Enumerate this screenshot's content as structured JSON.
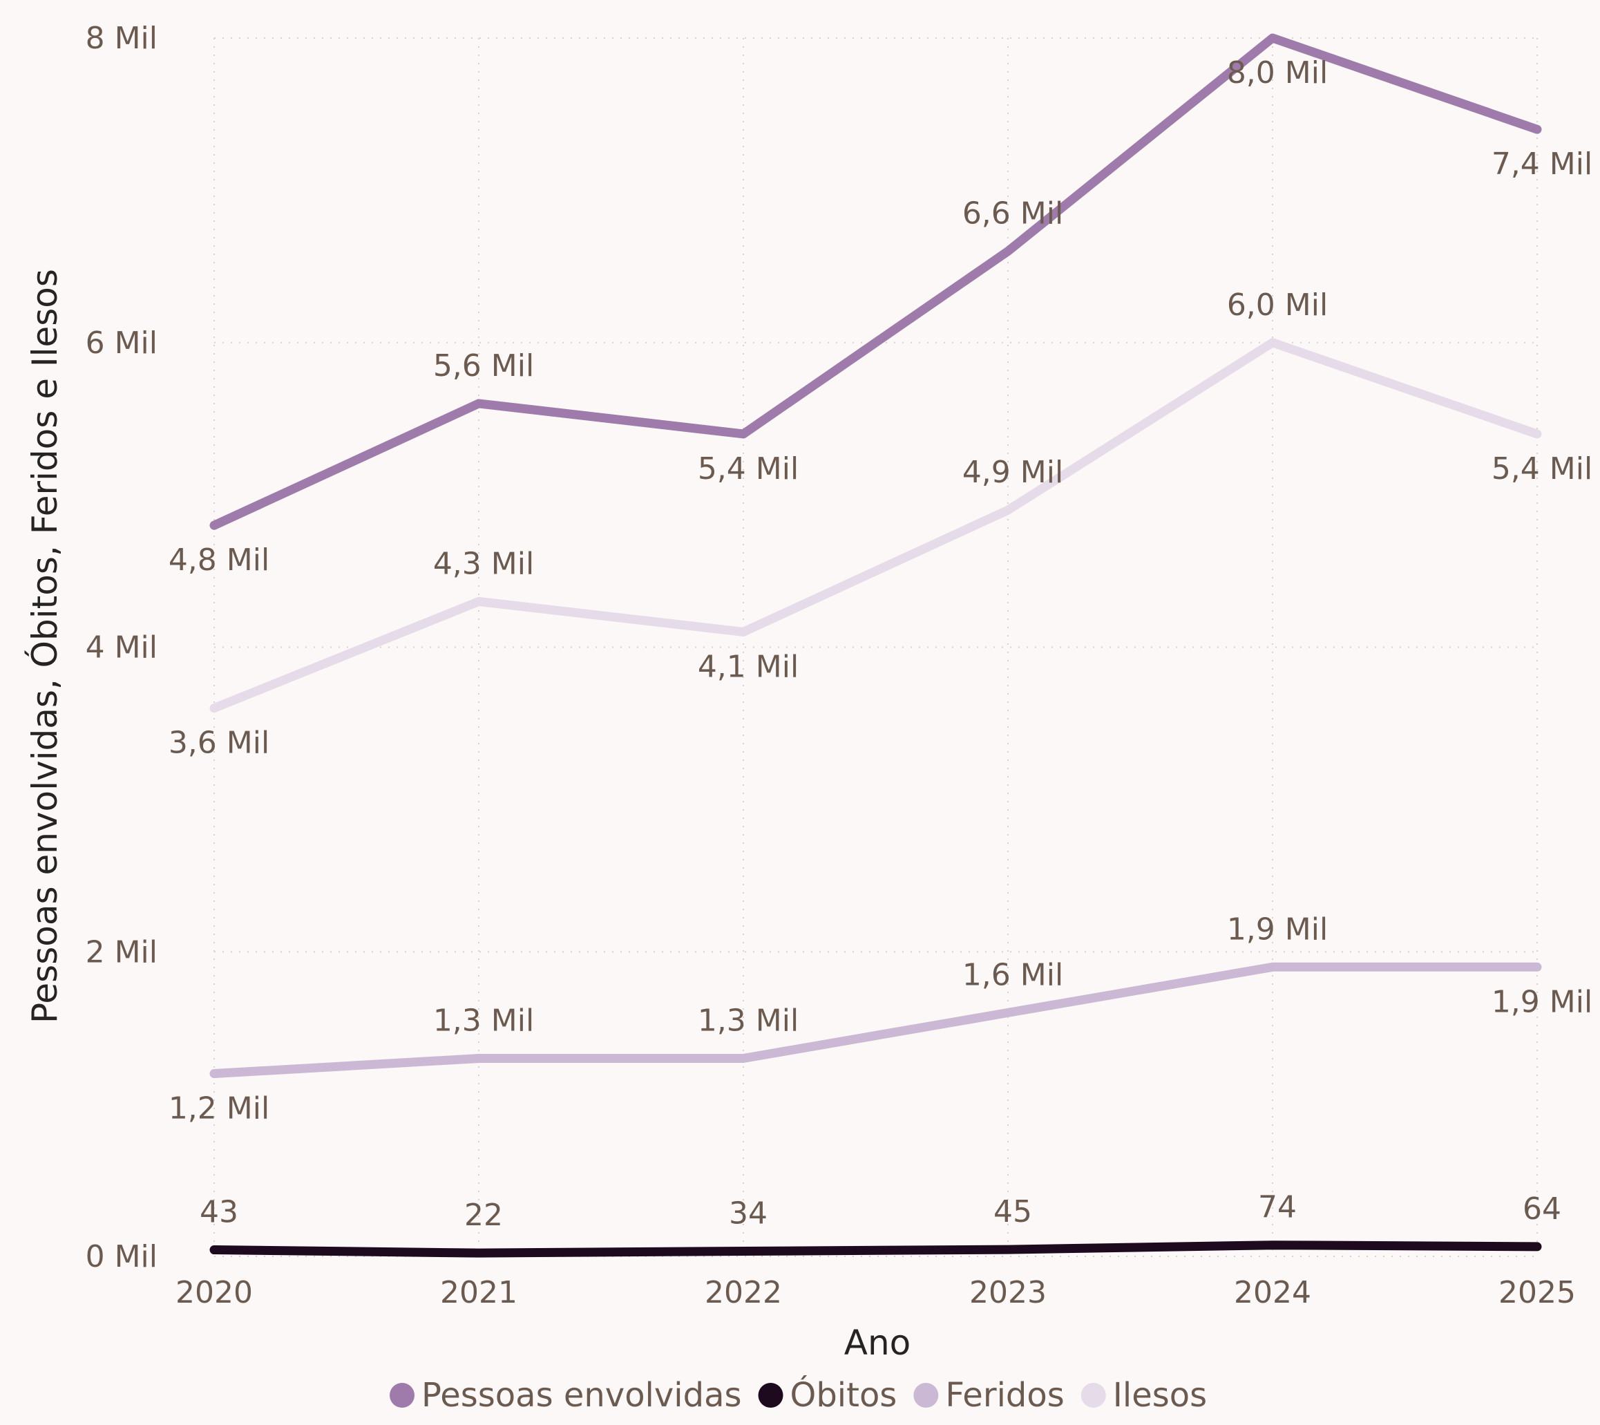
{
  "chart_data": {
    "type": "line",
    "title": "",
    "xlabel": "Ano",
    "ylabel": "Pessoas envolvidas, Óbitos, Feridos e Ilesos",
    "x": [
      2020,
      2021,
      2022,
      2023,
      2024,
      2025
    ],
    "ylim": [
      0,
      8000
    ],
    "yticks": [
      0,
      2000,
      4000,
      6000,
      8000
    ],
    "ytick_labels": [
      "0 Mil",
      "2 Mil",
      "4 Mil",
      "6 Mil",
      "8 Mil"
    ],
    "grid": true,
    "legend_position": "bottom",
    "series": [
      {
        "name": "Pessoas envolvidas",
        "color": "#9e7bab",
        "values": [
          4800,
          5600,
          5400,
          6600,
          8000,
          7400
        ],
        "labels": [
          "4,8 Mil",
          "5,6 Mil",
          "5,4 Mil",
          "6,6 Mil",
          "8,0 Mil",
          "7,4 Mil"
        ],
        "label_pos": [
          "below",
          "above",
          "below",
          "above",
          "below",
          "below"
        ]
      },
      {
        "name": "Óbitos",
        "color": "#1e0a1f",
        "values": [
          43,
          22,
          34,
          45,
          74,
          64
        ],
        "labels": [
          "43",
          "22",
          "34",
          "45",
          "74",
          "64"
        ],
        "label_pos": [
          "above",
          "above",
          "above",
          "above",
          "above",
          "above"
        ]
      },
      {
        "name": "Feridos",
        "color": "#cbb8d4",
        "values": [
          1200,
          1300,
          1300,
          1600,
          1900,
          1900
        ],
        "labels": [
          "1,2 Mil",
          "1,3 Mil",
          "1,3 Mil",
          "1,6 Mil",
          "1,9 Mil",
          "1,9 Mil"
        ],
        "label_pos": [
          "below",
          "above",
          "above",
          "above",
          "above",
          "below"
        ]
      },
      {
        "name": "Ilesos",
        "color": "#e6dce9",
        "values": [
          3600,
          4300,
          4100,
          4900,
          6000,
          5400
        ],
        "labels": [
          "3,6 Mil",
          "4,3 Mil",
          "4,1 Mil",
          "4,9 Mil",
          "6,0 Mil",
          "5,4 Mil"
        ],
        "label_pos": [
          "below",
          "above",
          "below",
          "above",
          "above",
          "below"
        ]
      }
    ]
  }
}
